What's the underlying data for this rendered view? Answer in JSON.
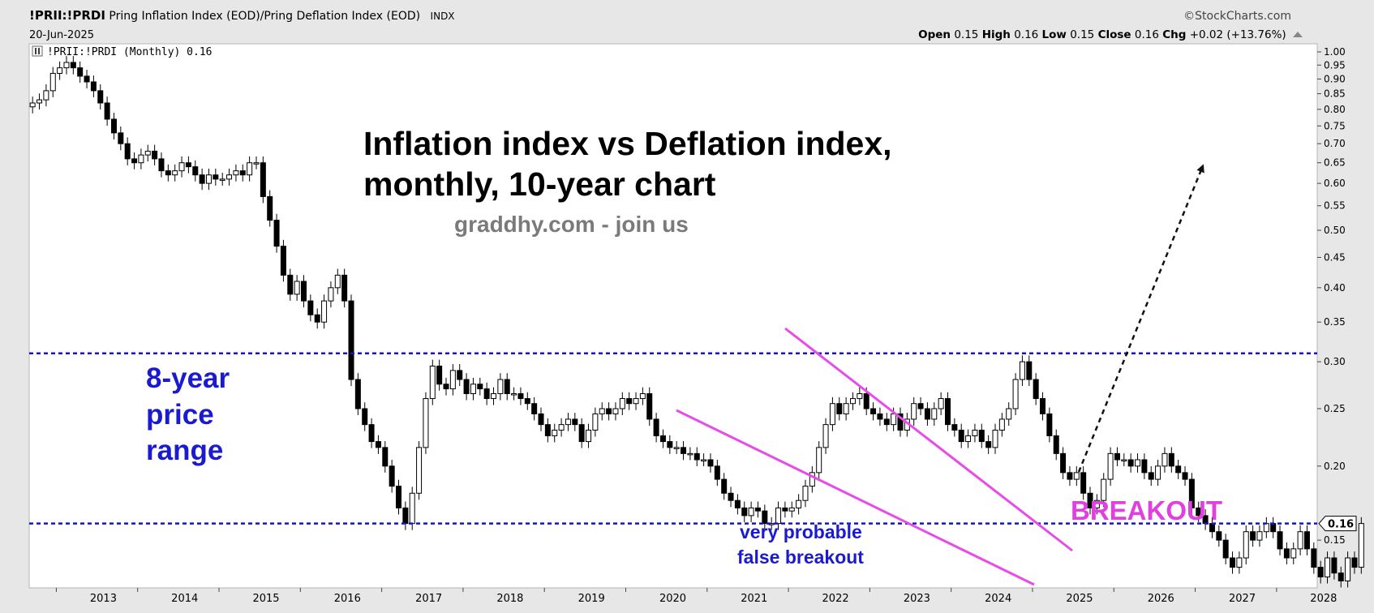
{
  "header": {
    "symbol": "!PRII:!PRDI",
    "description": "Pring Inflation Index (EOD)/Pring Deflation Index (EOD)",
    "exchange": "INDX",
    "date": "20-Jun-2025",
    "brand": "©StockCharts.com",
    "quote": {
      "open_label": "Open",
      "open": "0.15",
      "high_label": "High",
      "high": "0.16",
      "low_label": "Low",
      "low": "0.15",
      "close_label": "Close",
      "close": "0.16",
      "chg_label": "Chg",
      "chg": "+0.02 (+13.76%)"
    }
  },
  "legend": {
    "label": "!PRII:!PRDI (Monthly) 0.16"
  },
  "annotations": {
    "title_line1": "Inflation index vs Deflation index,",
    "title_line2": "monthly, 10-year chart",
    "subtitle": "graddhy.com - join us",
    "range_label_1": "8-year",
    "range_label_2": "price",
    "range_label_3": "range",
    "breakout": "BREAKOUT",
    "false_breakout_1": "very probable",
    "false_breakout_2": "false breakout",
    "last_price_tag": "0.16"
  },
  "colors": {
    "background": "#ffffff",
    "frame": "#e7e7e7",
    "candle": "#000000",
    "level_lines": "#1515c8",
    "wedge": "#e84ce8",
    "annotation_blue": "#1a1ad0",
    "breakout_text": "#e040e0",
    "subtitle_gray": "#7a7a7a"
  },
  "chart_data": {
    "type": "candlestick",
    "frequency": "monthly",
    "scale": "log",
    "ylim": [
      0.125,
      1.0
    ],
    "yticks": [
      "1.00",
      "0.95",
      "0.90",
      "0.85",
      "0.80",
      "0.75",
      "0.70",
      "0.65",
      "0.60",
      "0.55",
      "0.50",
      "0.45",
      "0.40",
      "0.35",
      "0.30",
      "0.25",
      "0.20",
      "0.15"
    ],
    "xticks": [
      "2013",
      "2014",
      "2015",
      "2016",
      "2017",
      "2018",
      "2019",
      "2020",
      "2021",
      "2022",
      "2023",
      "2024",
      "2025",
      "2026",
      "2027",
      "2028"
    ],
    "x_start": "2012-09",
    "x_end": "2028-07",
    "closes_start": "2012-09",
    "closes": [
      0.82,
      0.83,
      0.86,
      0.92,
      0.94,
      0.96,
      0.94,
      0.91,
      0.89,
      0.86,
      0.82,
      0.77,
      0.73,
      0.7,
      0.66,
      0.65,
      0.67,
      0.68,
      0.66,
      0.63,
      0.62,
      0.63,
      0.65,
      0.64,
      0.62,
      0.6,
      0.62,
      0.61,
      0.61,
      0.62,
      0.63,
      0.62,
      0.65,
      0.65,
      0.57,
      0.52,
      0.47,
      0.42,
      0.39,
      0.41,
      0.38,
      0.36,
      0.35,
      0.38,
      0.4,
      0.42,
      0.38,
      0.28,
      0.25,
      0.235,
      0.22,
      0.215,
      0.2,
      0.185,
      0.17,
      0.16,
      0.18,
      0.215,
      0.26,
      0.295,
      0.275,
      0.27,
      0.29,
      0.28,
      0.265,
      0.275,
      0.27,
      0.26,
      0.265,
      0.28,
      0.265,
      0.265,
      0.26,
      0.255,
      0.245,
      0.235,
      0.225,
      0.23,
      0.235,
      0.24,
      0.235,
      0.22,
      0.23,
      0.245,
      0.25,
      0.245,
      0.25,
      0.26,
      0.255,
      0.26,
      0.265,
      0.24,
      0.225,
      0.22,
      0.215,
      0.215,
      0.21,
      0.21,
      0.205,
      0.205,
      0.2,
      0.19,
      0.18,
      0.175,
      0.17,
      0.165,
      0.17,
      0.168,
      0.16,
      0.16,
      0.17,
      0.168,
      0.17,
      0.175,
      0.185,
      0.195,
      0.215,
      0.235,
      0.255,
      0.245,
      0.255,
      0.26,
      0.265,
      0.25,
      0.245,
      0.24,
      0.235,
      0.245,
      0.23,
      0.24,
      0.255,
      0.25,
      0.24,
      0.25,
      0.26,
      0.235,
      0.23,
      0.22,
      0.225,
      0.23,
      0.22,
      0.215,
      0.23,
      0.24,
      0.25,
      0.28,
      0.3,
      0.28,
      0.26,
      0.245,
      0.225,
      0.21,
      0.195,
      0.19,
      0.195,
      0.18,
      0.17,
      0.175,
      0.19,
      0.21,
      0.205,
      0.205,
      0.2,
      0.205,
      0.195,
      0.19,
      0.2,
      0.21,
      0.2,
      0.195,
      0.19,
      0.17,
      0.165,
      0.16,
      0.155,
      0.15,
      0.14,
      0.135,
      0.14,
      0.155,
      0.15,
      0.155,
      0.16,
      0.155,
      0.145,
      0.14,
      0.145,
      0.155,
      0.145,
      0.135,
      0.13,
      0.14,
      0.132,
      0.128,
      0.14,
      0.135,
      0.16
    ],
    "support_level": 0.16,
    "resistance_level": 0.31,
    "last_close": 0.16
  }
}
